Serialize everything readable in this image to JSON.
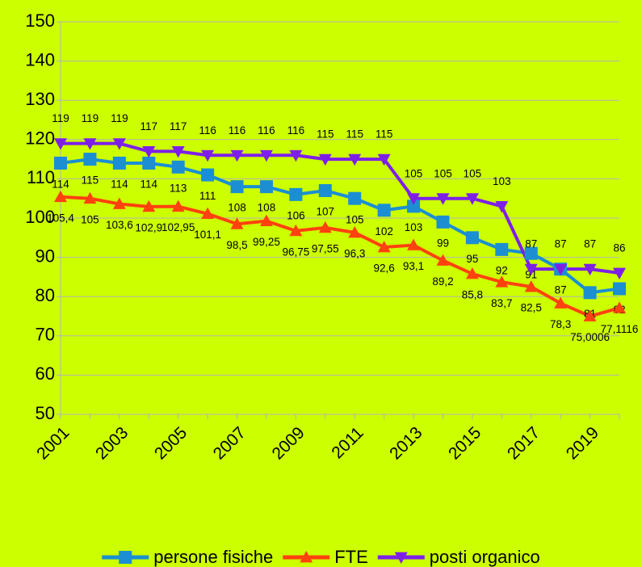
{
  "chart_data": {
    "type": "line",
    "categories": [
      "2001",
      null,
      "2003",
      null,
      "2005",
      null,
      "2007",
      null,
      "2009",
      null,
      "2011",
      null,
      "2013",
      null,
      "2015",
      null,
      "2017",
      null,
      "2019",
      null
    ],
    "series": [
      {
        "name": "persone fisiche",
        "color": "#1b8fd2",
        "marker": "square",
        "label_side": "below",
        "values": [
          114,
          115,
          114,
          114,
          113,
          111,
          108,
          108,
          106,
          107,
          105,
          102,
          103,
          99,
          95,
          92,
          91,
          87,
          81,
          82
        ]
      },
      {
        "name": "FTE",
        "color": "#ff420e",
        "marker": "triangle-up",
        "label_side": "below",
        "values": [
          105.4,
          105,
          103.6,
          102.9,
          102.95,
          101.1,
          98.5,
          99.25,
          96.75,
          97.55,
          96.3,
          92.6,
          93.1,
          89.2,
          85.8,
          83.7,
          82.5,
          78.3,
          75.0006,
          77.1116
        ],
        "value_labels": [
          "105,4",
          "105",
          "103,6",
          "102,9",
          "102,95",
          "101,1",
          "98,5",
          "99,25",
          "96,75",
          "97,55",
          "96,3",
          "92,6",
          "93,1",
          "89,2",
          "85,8",
          "83,7",
          "82,5",
          "78,3",
          "75,0006",
          "77,1116"
        ]
      },
      {
        "name": "posti organico",
        "color": "#7e1fe8",
        "marker": "triangle-down",
        "label_side": "above",
        "values": [
          119,
          119,
          119,
          117,
          117,
          116,
          116,
          116,
          116,
          115,
          115,
          115,
          105,
          105,
          105,
          103,
          87,
          87,
          87,
          86
        ]
      }
    ],
    "ylim": [
      50,
      150
    ],
    "yticks": [
      50,
      60,
      70,
      80,
      90,
      100,
      110,
      120,
      130,
      140,
      150
    ],
    "grid": true,
    "legend": "bottom"
  }
}
